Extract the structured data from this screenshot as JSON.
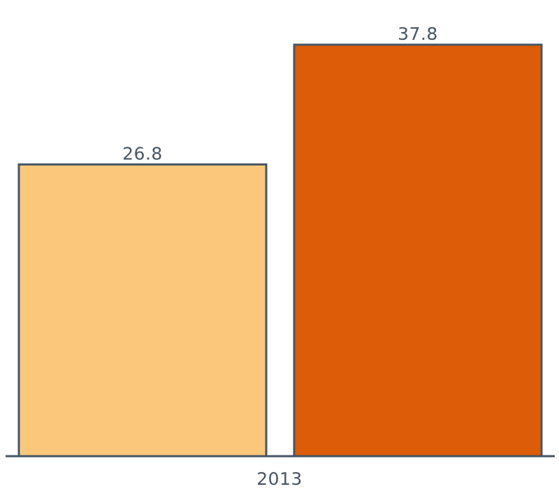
{
  "chart_data": {
    "type": "bar",
    "categories": [
      "2013"
    ],
    "series": [
      {
        "values": [
          26.8
        ],
        "color": "#FBC87B"
      },
      {
        "values": [
          37.8
        ],
        "color": "#DD5C07"
      }
    ],
    "data_labels": [
      "26.8",
      "37.8"
    ],
    "ylim": [
      0,
      37.8
    ],
    "grid": false,
    "axis_color": "#475664"
  }
}
